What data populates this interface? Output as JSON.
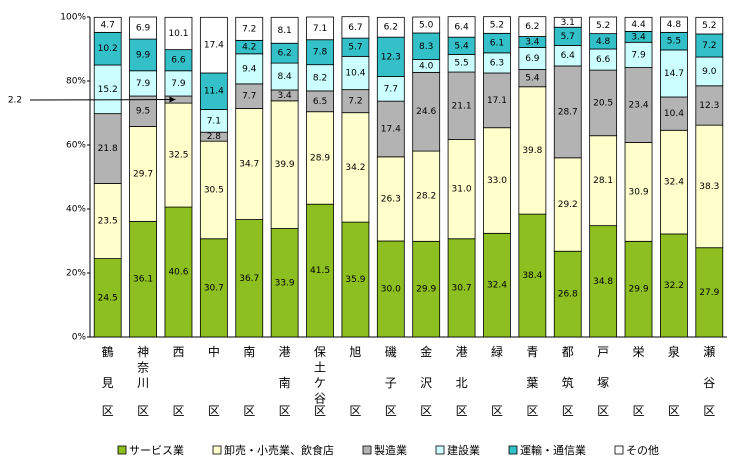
{
  "chart_data": {
    "type": "stacked-bar",
    "categories": [
      "鶴見区",
      "神奈川区",
      "西区",
      "中区",
      "南区",
      "港南区",
      "保土ケ谷区",
      "旭区",
      "磯子区",
      "金沢区",
      "港北区",
      "緑区",
      "青葉区",
      "都筑区",
      "戸塚区",
      "栄区",
      "泉区",
      "瀬谷区"
    ],
    "series": [
      {
        "name": "サービス業",
        "color": "#8cbf1f",
        "values": [
          24.5,
          36.1,
          40.6,
          30.7,
          36.7,
          33.9,
          41.5,
          35.9,
          30.0,
          29.9,
          30.7,
          32.4,
          38.4,
          26.8,
          34.8,
          29.9,
          32.2,
          27.9
        ],
        "value_labels": [
          "24.5",
          "36.1",
          "40.6",
          "30.7",
          "36.7",
          "33.9",
          "41.5",
          "35.9",
          "30.0",
          "29.9",
          "30.7",
          "32.4",
          "38.4",
          "26.8",
          "34.8",
          "29.9",
          "32.2",
          "27.9"
        ]
      },
      {
        "name": "卸売・小売業、飲食店",
        "color": "#ffffcc",
        "values": [
          23.5,
          29.7,
          32.5,
          30.5,
          34.7,
          39.9,
          28.9,
          34.2,
          26.3,
          28.2,
          31.0,
          33.0,
          39.8,
          29.2,
          28.1,
          30.9,
          32.4,
          38.3
        ],
        "value_labels": [
          "23.5",
          "29.7",
          "32.5",
          "30.5",
          "34.7",
          "39.9",
          "28.9",
          "34.2",
          "26.3",
          "28.2",
          "31.0",
          "33.0",
          "39.8",
          "29.2",
          "28.1",
          "30.9",
          "32.4",
          "38.3"
        ]
      },
      {
        "name": "製造業",
        "color": "#b3b3b3",
        "values": [
          21.8,
          9.5,
          2.2,
          2.8,
          7.7,
          3.4,
          6.5,
          7.2,
          17.4,
          24.6,
          21.1,
          17.1,
          5.4,
          28.7,
          20.5,
          23.4,
          10.4,
          12.3
        ],
        "value_labels": [
          "21.8",
          "9.5",
          "2.2",
          "2.8",
          "7.7",
          "3.4",
          "6.5",
          "7.2",
          "17.4",
          "24.6",
          "21.1",
          "17.1",
          "5.4",
          "28.7",
          "20.5",
          "23.4",
          "10.4",
          "12.3"
        ]
      },
      {
        "name": "建設業",
        "color": "#ccffff",
        "values": [
          15.2,
          7.9,
          7.9,
          7.1,
          9.4,
          8.4,
          8.2,
          10.4,
          7.7,
          4.0,
          5.5,
          6.3,
          6.9,
          6.4,
          6.6,
          7.9,
          14.7,
          9.0
        ],
        "value_labels": [
          "15.2",
          "7.9",
          "7.9",
          "7.1",
          "9.4",
          "8.4",
          "8.2",
          "10.4",
          "7.7",
          "4.0",
          "5.5",
          "6.3",
          "6.9",
          "6.4",
          "6.6",
          "7.9",
          "14.7",
          "9.0"
        ]
      },
      {
        "name": "運輸・通信業",
        "color": "#33c0c8",
        "values": [
          10.2,
          9.9,
          6.6,
          11.4,
          4.2,
          6.2,
          7.8,
          5.7,
          12.3,
          8.3,
          5.4,
          6.1,
          3.4,
          5.7,
          4.8,
          3.4,
          5.5,
          7.2
        ],
        "value_labels": [
          "10.2",
          "9.9",
          "6.6",
          "11.4",
          "4.2",
          "6.2",
          "7.8",
          "5.7",
          "12.3",
          "8.3",
          "5.4",
          "6.1",
          "3.4",
          "5.7",
          "4.8",
          "3.4",
          "5.5",
          "7.2"
        ]
      },
      {
        "name": "その他",
        "color": "#ffffff",
        "values": [
          4.7,
          6.9,
          10.1,
          17.4,
          7.2,
          8.1,
          7.1,
          6.7,
          6.2,
          5.0,
          6.4,
          5.2,
          6.2,
          3.1,
          5.2,
          4.4,
          4.8,
          5.2
        ],
        "value_labels": [
          "4.7",
          "6.9",
          "10.1",
          "17.4",
          "7.2",
          "8.1",
          "7.1",
          "6.7",
          "6.2",
          "5.0",
          "6.4",
          "5.2",
          "6.2",
          "3.1",
          "5.2",
          "4.4",
          "4.8",
          "5.2"
        ]
      }
    ],
    "ylim": [
      0,
      100
    ],
    "yticks": [
      {
        "value": 0,
        "label": "0%"
      },
      {
        "value": 20,
        "label": "20%"
      },
      {
        "value": 40,
        "label": "40%"
      },
      {
        "value": 60,
        "label": "60%"
      },
      {
        "value": 80,
        "label": "80%"
      },
      {
        "value": 100,
        "label": "100%"
      }
    ],
    "grid": false,
    "legend": "bottom"
  }
}
